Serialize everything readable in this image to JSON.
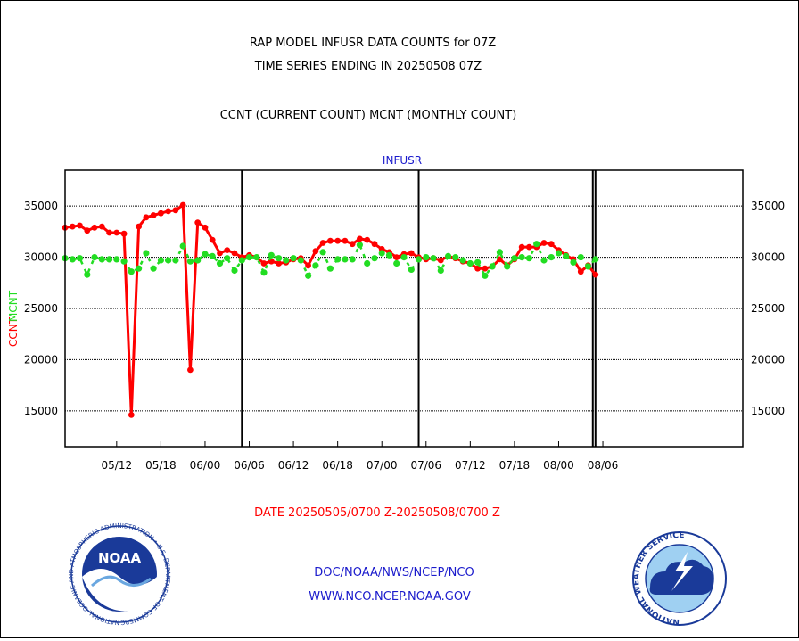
{
  "header": {
    "line1": "RAP MODEL INFUSR DATA COUNTS for 07Z",
    "line2": "TIME SERIES ENDING IN 20250508 07Z",
    "line3": "CCNT (CURRENT COUNT) MCNT (MONTHLY COUNT)"
  },
  "footer": {
    "date_range": "DATE 20250505/0700 Z-20250508/0700 Z",
    "link1": "DOC/NOAA/NWS/NCEP/NCO",
    "link2": "WWW.NCO.NCEP.NOAA.GOV"
  },
  "logos": {
    "noaa_text": "NOAA",
    "noaa_ring": "NATIONAL OCEANIC AND ATMOSPHERIC ADMINISTRATION • U.S. DEPARTMENT OF COMMERCE •",
    "nws_ring": "NATIONAL WEATHER SERVICE"
  },
  "colors": {
    "ccnt": "#ff0000",
    "mcnt": "#22dd22",
    "label": "#1a1acc",
    "grid": "#000000"
  },
  "chart_data": {
    "type": "line",
    "title": "INFUSR",
    "ylabel_left": "CCNT",
    "ylabel_left2": "MCNT",
    "ylim": [
      11500,
      38500
    ],
    "yticks": [
      15000,
      20000,
      25000,
      30000,
      35000
    ],
    "ytick_labels": [
      "15000",
      "20000",
      "25000",
      "30000",
      "35000"
    ],
    "xlim": [
      0,
      92
    ],
    "xticks": [
      {
        "x": 7,
        "label": "05/12"
      },
      {
        "x": 13,
        "label": "05/18"
      },
      {
        "x": 19,
        "label": "06/00"
      },
      {
        "x": 25,
        "label": "06/06"
      },
      {
        "x": 31,
        "label": "06/12"
      },
      {
        "x": 37,
        "label": "06/18"
      },
      {
        "x": 43,
        "label": "07/00"
      },
      {
        "x": 49,
        "label": "07/06"
      },
      {
        "x": 55,
        "label": "07/12"
      },
      {
        "x": 61,
        "label": "07/18"
      },
      {
        "x": 67,
        "label": "08/00"
      },
      {
        "x": 73,
        "label": "08/06"
      }
    ],
    "day_boundaries": [
      24,
      48,
      72
    ],
    "grid": true,
    "series": [
      {
        "name": "CCNT",
        "values": [
          32900,
          33000,
          33100,
          32600,
          32900,
          33000,
          32400,
          32400,
          32300,
          14600,
          33000,
          33900,
          34100,
          34300,
          34500,
          34600,
          35100,
          19000,
          33400,
          32900,
          31700,
          30400,
          30700,
          30400,
          30000,
          30200,
          30000,
          29400,
          29600,
          29400,
          29500,
          29800,
          29900,
          29200,
          30600,
          31400,
          31600,
          31600,
          31600,
          31300,
          31800,
          31700,
          31300,
          30800,
          30500,
          30000,
          30300,
          30400,
          30000,
          29800,
          29900,
          29700,
          30100,
          29900,
          29600,
          29400,
          28900,
          28900,
          29100,
          29800,
          29200,
          29800,
          31000,
          31000,
          31000,
          31400,
          31300,
          30700,
          30200,
          29800,
          28600,
          29200,
          28300
        ]
      },
      {
        "name": "MCNT",
        "values": [
          29900,
          29800,
          29900,
          28300,
          30000,
          29800,
          29800,
          29800,
          29600,
          28600,
          28900,
          30400,
          28900,
          29700,
          29700,
          29700,
          31100,
          29600,
          29700,
          30300,
          30100,
          29400,
          29900,
          28700,
          29700,
          30000,
          30000,
          28500,
          30200,
          29900,
          29700,
          29900,
          29700,
          28200,
          29200,
          30500,
          28900,
          29800,
          29800,
          29800,
          31200,
          29400,
          29900,
          30400,
          30200,
          29400,
          30000,
          28800,
          29800,
          30000,
          29900,
          28700,
          30100,
          30000,
          29700,
          29400,
          29500,
          28200,
          29100,
          30500,
          29100,
          29900,
          30000,
          29900,
          31300,
          29700,
          30000,
          30400,
          30100,
          29500,
          30000,
          29100,
          29800
        ]
      }
    ]
  }
}
